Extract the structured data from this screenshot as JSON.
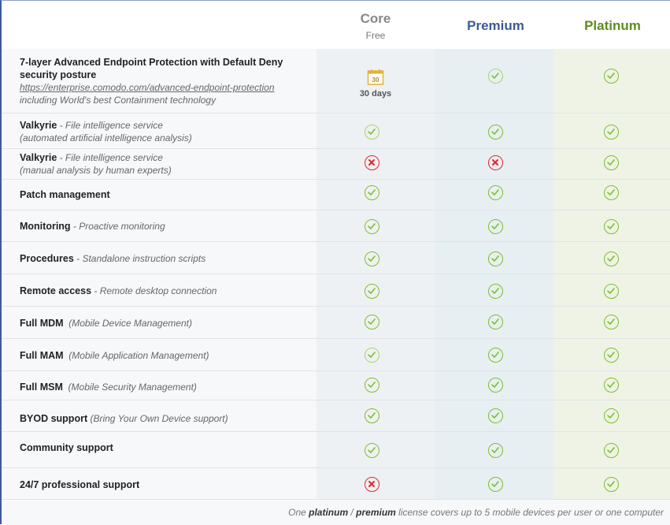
{
  "plans": [
    {
      "name": "Core",
      "subtitle": "Free",
      "color": "#888888"
    },
    {
      "name": "Premium",
      "subtitle": "",
      "color": "#3d5a99"
    },
    {
      "name": "Platinum",
      "subtitle": "",
      "color": "#5f8c1e"
    }
  ],
  "core_trial": {
    "icon": "calendar-icon",
    "badge": "30",
    "label": "30 days"
  },
  "features": [
    {
      "title": "7-layer Advanced Endpoint Protection with Default Deny security posture",
      "link": "https://enterprise.comodo.com/advanced-endpoint-protection",
      "desc": "including World's best Containment technology",
      "core": "trial",
      "premium": "check",
      "platinum": "check"
    },
    {
      "title": "Valkyrie",
      "desc": " - File intelligence service",
      "desc2": "(automated artificial intelligence analysis)",
      "core": "check",
      "premium": "check",
      "platinum": "check"
    },
    {
      "title": "Valkyrie",
      "desc": " - File intelligence service",
      "desc2": "(manual analysis by human experts)",
      "core": "cross",
      "premium": "cross",
      "platinum": "check"
    },
    {
      "title": "Patch management",
      "desc": "",
      "core": "check",
      "premium": "check",
      "platinum": "check"
    },
    {
      "title": "Monitoring",
      "desc": " - Proactive monitoring",
      "core": "check",
      "premium": "check",
      "platinum": "check"
    },
    {
      "title": "Procedures",
      "desc": " - Standalone instruction scripts",
      "core": "check",
      "premium": "check",
      "platinum": "check"
    },
    {
      "title": "Remote access",
      "desc": " - Remote desktop connection",
      "core": "check",
      "premium": "check",
      "platinum": "check"
    },
    {
      "title": "Full MDM",
      "desc": "  (Mobile Device Management)",
      "core": "check",
      "premium": "check",
      "platinum": "check"
    },
    {
      "title": "Full MAM",
      "desc": "  (Mobile Application Management)",
      "core": "check",
      "premium": "check",
      "platinum": "check"
    },
    {
      "title": "Full MSM",
      "desc": "  (Mobile Security Management)",
      "core": "check",
      "premium": "check",
      "platinum": "check"
    },
    {
      "title": "BYOD support",
      "desc": " (Bring Your Own Device support)",
      "core": "check",
      "premium": "check",
      "platinum": "check"
    },
    {
      "title": "Community support",
      "desc": "",
      "core": "check",
      "premium": "check",
      "platinum": "check"
    },
    {
      "title": "24/7 professional support",
      "desc": "",
      "core": "cross",
      "premium": "check",
      "platinum": "check"
    }
  ],
  "footer": {
    "pre": "One ",
    "platinum": "platinum",
    "slash": " / ",
    "premium": "premium",
    "post": " license covers up to 5 mobile devices per user or one computer"
  },
  "colors": {
    "check": "#7cbf2b",
    "cross": "#e0272b",
    "premium_header": "#3d5a99",
    "platinum_header": "#5f8c1e"
  }
}
